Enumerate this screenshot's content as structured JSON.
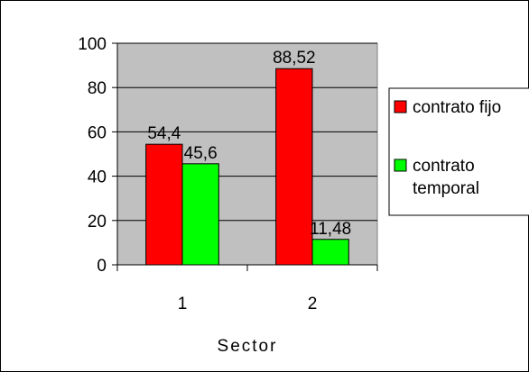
{
  "chart_data": {
    "type": "bar",
    "categories": [
      "1",
      "2"
    ],
    "series": [
      {
        "name": "contrato fijo",
        "color": "#ff0000",
        "values": [
          54.4,
          88.52
        ],
        "labels": [
          "54,4",
          "88,52"
        ]
      },
      {
        "name": "contrato temporal",
        "color": "#00ff00",
        "values": [
          45.6,
          11.48
        ],
        "labels": [
          "45,6",
          "11,48"
        ]
      }
    ],
    "title": "",
    "xlabel": "Sector",
    "ylabel": "",
    "ylim": [
      0,
      100
    ],
    "yticks": [
      0,
      20,
      40,
      60,
      80,
      100
    ],
    "grid": true,
    "plot_background": "#c0c0c0",
    "legend_position": "right"
  }
}
